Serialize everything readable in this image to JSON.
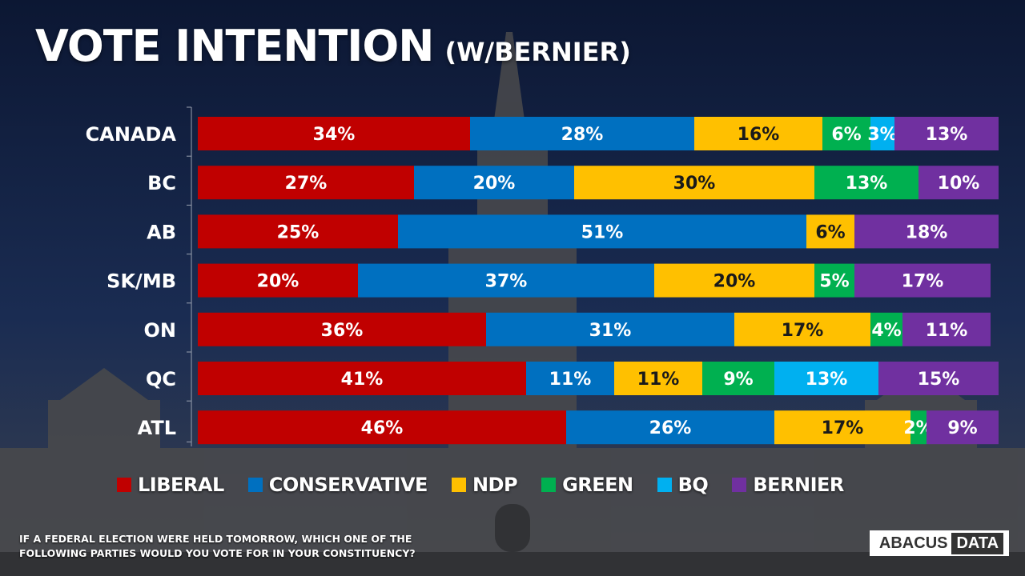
{
  "title": "VOTE INTENTION",
  "subtitle": "(W/BERNIER)",
  "footnote": "IF A FEDERAL ELECTION WERE HELD TOMORROW, WHICH ONE OF THE FOLLOWING PARTIES WOULD YOU VOTE FOR IN YOUR CONSTITUENCY?",
  "logo": {
    "word1": "ABACUS",
    "word2": "DATA"
  },
  "colors": {
    "LIBERAL": "#c00000",
    "CONSERVATIVE": "#0070c0",
    "NDP": "#ffc000",
    "GREEN": "#00b050",
    "BQ": "#00b0f0",
    "BERNIER": "#7030a0"
  },
  "chart_data": {
    "type": "bar",
    "orientation": "horizontal",
    "stacked": true,
    "categories": [
      "CANADA",
      "BC",
      "AB",
      "SK/MB",
      "ON",
      "QC",
      "ATL"
    ],
    "series": [
      {
        "name": "LIBERAL",
        "values": [
          34,
          27,
          25,
          20,
          36,
          41,
          46
        ]
      },
      {
        "name": "CONSERVATIVE",
        "values": [
          28,
          20,
          51,
          37,
          31,
          11,
          26
        ]
      },
      {
        "name": "NDP",
        "values": [
          16,
          30,
          6,
          20,
          17,
          11,
          17
        ]
      },
      {
        "name": "GREEN",
        "values": [
          6,
          13,
          0,
          5,
          4,
          9,
          2
        ]
      },
      {
        "name": "BQ",
        "values": [
          3,
          0,
          0,
          0,
          0,
          13,
          0
        ]
      },
      {
        "name": "BERNIER",
        "values": [
          13,
          10,
          18,
          17,
          11,
          15,
          9
        ]
      }
    ],
    "value_suffix": "%",
    "xlim": [
      0,
      100
    ],
    "legend": "bottom",
    "grid": false
  }
}
